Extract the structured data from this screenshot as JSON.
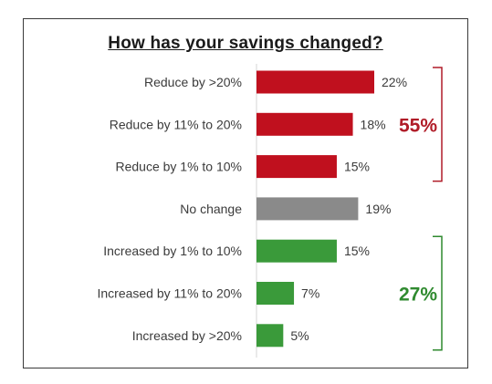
{
  "chart_data": {
    "type": "bar",
    "orientation": "horizontal",
    "title": "How has your savings changed?",
    "xlabel": "",
    "ylabel": "",
    "categories": [
      "Reduce by >20%",
      "Reduce by 11% to 20%",
      "Reduce by 1% to 10%",
      "No change",
      "Increased by 1% to 10%",
      "Increased by 11% to 20%",
      "Increased by >20%"
    ],
    "values": [
      22,
      18,
      15,
      19,
      15,
      7,
      5
    ],
    "value_labels": [
      "22%",
      "18%",
      "15%",
      "19%",
      "15%",
      "7%",
      "5%"
    ],
    "bar_colors": [
      "#c0101e",
      "#c0101e",
      "#c0101e",
      "#8a8a8a",
      "#3a9a3a",
      "#3a9a3a",
      "#3a9a3a"
    ],
    "xlim": [
      0,
      25
    ],
    "grid": false,
    "legend": "none",
    "annotations": [
      {
        "text": "55%",
        "applies_to": [
          "Reduce by >20%",
          "Reduce by 11% to 20%",
          "Reduce by 1% to 10%"
        ],
        "color": "#b01c28"
      },
      {
        "text": "27%",
        "applies_to": [
          "Increased by 1% to 10%",
          "Increased by 11% to 20%",
          "Increased by >20%"
        ],
        "color": "#2f8a2f"
      }
    ]
  }
}
